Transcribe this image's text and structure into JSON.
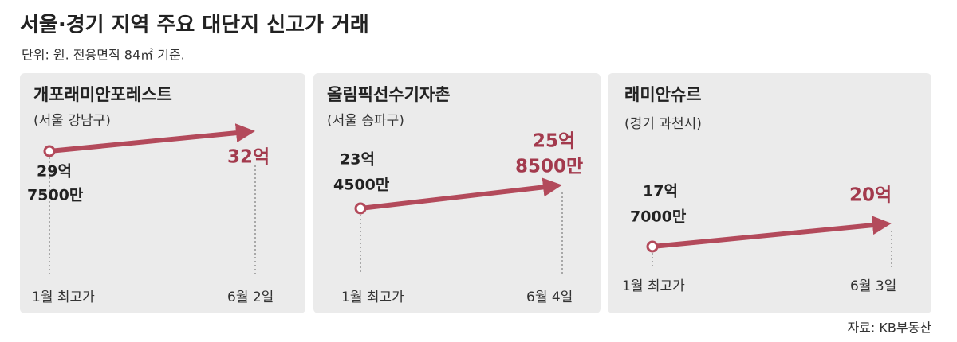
{
  "header": {
    "title": "서울·경기 지역 주요 대단지 신고가 거래",
    "subtitle": "단위: 원. 전용면적 84㎡ 기준."
  },
  "panels": [
    {
      "name": "개포래미안포레스트",
      "location": "(서울 강남구)",
      "start_label": [
        "29억",
        "7500만"
      ],
      "end_label": [
        "32억"
      ],
      "start_date": "1월 최고가",
      "end_date": "6월 2일"
    },
    {
      "name": "올림픽선수기자촌",
      "location": "(서울 송파구)",
      "start_label": [
        "23억",
        "4500만"
      ],
      "end_label": [
        "25억",
        "8500만"
      ],
      "start_date": "1월 최고가",
      "end_date": "6월 4일"
    },
    {
      "name": "래미안슈르",
      "location": "(경기 과천시)",
      "start_label": [
        "17억",
        "7000만"
      ],
      "end_label": [
        "20억"
      ],
      "start_date": "1월 최고가",
      "end_date": "6월 3일"
    }
  ],
  "footer": {
    "source": "자료: KB부동산"
  }
}
